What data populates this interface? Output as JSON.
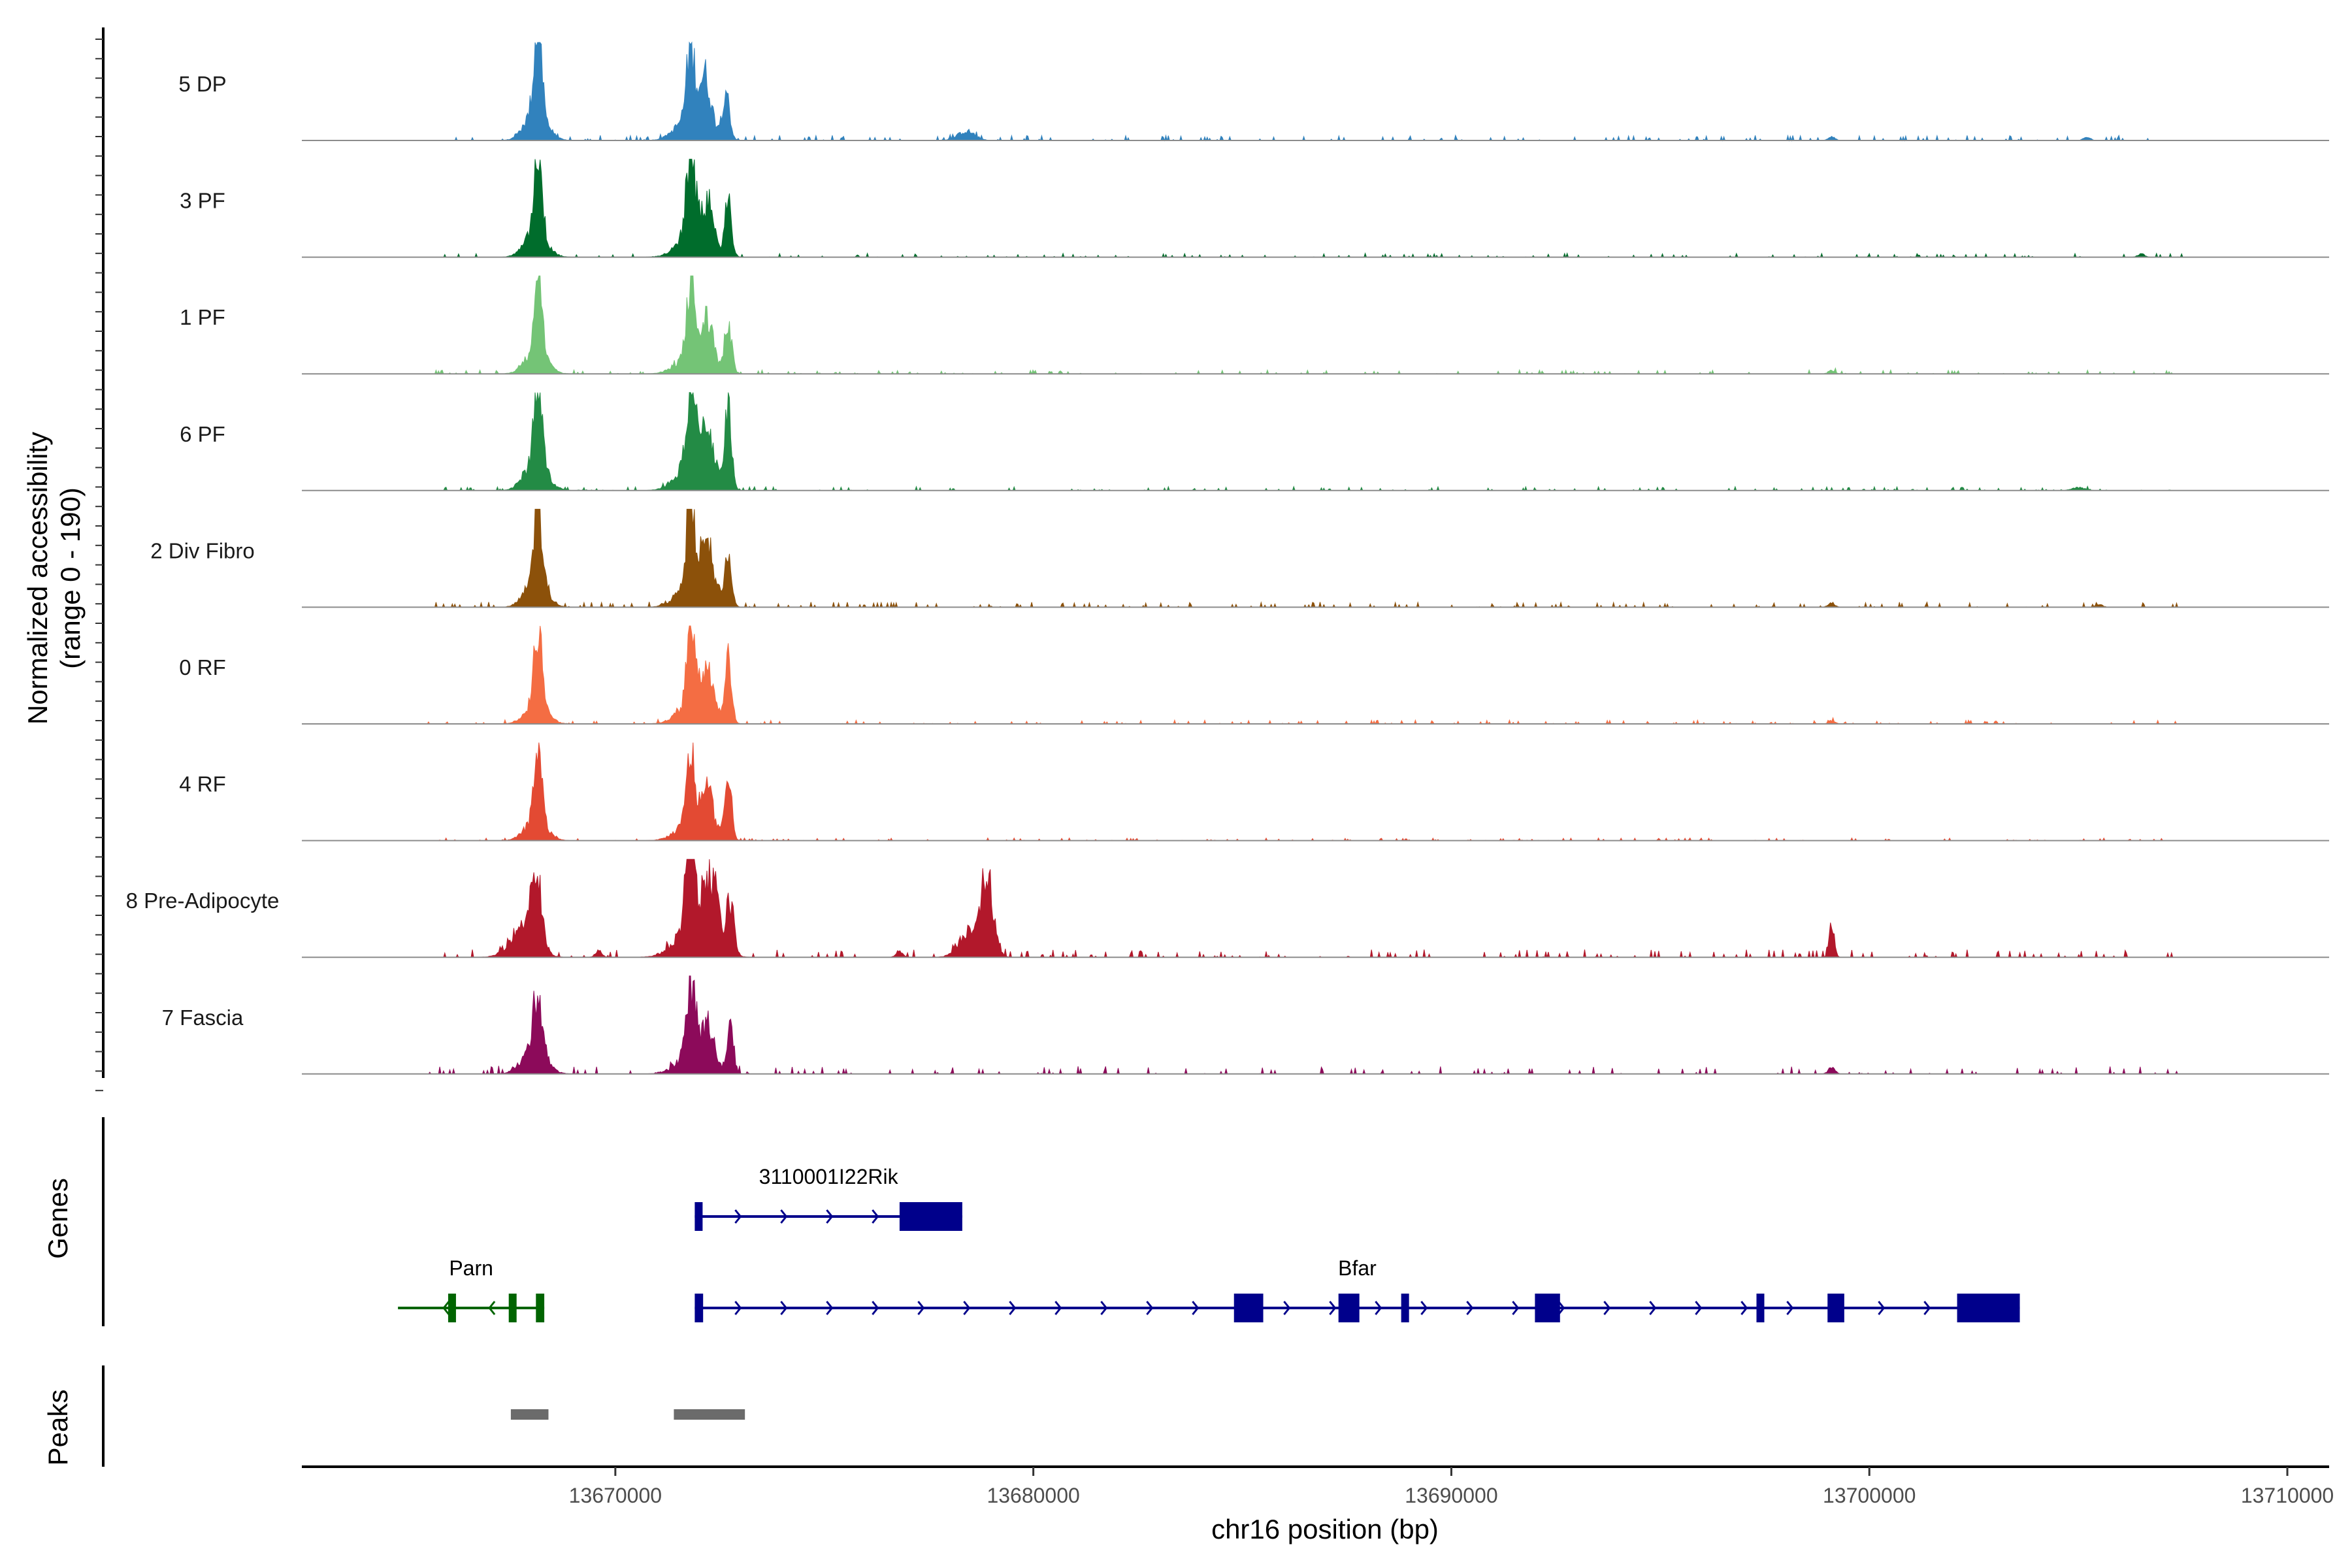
{
  "chart_data": {
    "type": "area",
    "ylabel": "Normalized accessibility\n(range 0 - 190)",
    "ylim": [
      0,
      190
    ],
    "xlabel": "chr16 position (bp)",
    "xlim": [
      13662500,
      13711000
    ],
    "x_ticks": [
      13670000,
      13680000,
      13690000,
      13700000,
      13710000
    ],
    "x_tick_labels": [
      "13670000",
      "13680000",
      "13690000",
      "13700000",
      "13710000"
    ],
    "panel_labels": {
      "genes": "Genes",
      "peaks": "Peaks"
    },
    "tracks": [
      {
        "name": "5 DP",
        "color": "#3182bd",
        "peaks": [
          [
            13668150,
            170,
            90
          ],
          [
            13668100,
            60,
            250
          ],
          [
            13671800,
            130,
            90
          ],
          [
            13672150,
            80,
            130
          ],
          [
            13672650,
            100,
            80
          ],
          [
            13671900,
            60,
            350
          ],
          [
            13678400,
            18,
            200
          ],
          [
            13699100,
            8,
            80
          ],
          [
            13705200,
            6,
            80
          ]
        ],
        "noise": 4
      },
      {
        "name": "3 PF",
        "color": "#006d2c",
        "peaks": [
          [
            13668150,
            170,
            90
          ],
          [
            13668100,
            50,
            250
          ],
          [
            13671800,
            155,
            100
          ],
          [
            13672200,
            70,
            140
          ],
          [
            13672700,
            105,
            80
          ],
          [
            13671900,
            50,
            350
          ],
          [
            13706500,
            6,
            80
          ]
        ],
        "noise": 3
      },
      {
        "name": "1 PF",
        "color": "#74c476",
        "peaks": [
          [
            13668150,
            170,
            90
          ],
          [
            13668100,
            45,
            250
          ],
          [
            13671800,
            140,
            90
          ],
          [
            13672200,
            75,
            140
          ],
          [
            13672700,
            100,
            80
          ],
          [
            13671900,
            45,
            350
          ],
          [
            13699100,
            6,
            80
          ]
        ],
        "noise": 3
      },
      {
        "name": "6 PF",
        "color": "#238b45",
        "peaks": [
          [
            13668150,
            160,
            90
          ],
          [
            13668100,
            60,
            260
          ],
          [
            13671800,
            150,
            100
          ],
          [
            13672200,
            90,
            150
          ],
          [
            13672700,
            150,
            80
          ],
          [
            13671900,
            60,
            360
          ],
          [
            13705000,
            6,
            150
          ]
        ],
        "noise": 3
      },
      {
        "name": "2 Div Fibro",
        "color": "#8c510a",
        "peaks": [
          [
            13668150,
            170,
            90
          ],
          [
            13668100,
            55,
            250
          ],
          [
            13671800,
            160,
            100
          ],
          [
            13672200,
            85,
            150
          ],
          [
            13672700,
            90,
            80
          ],
          [
            13671900,
            55,
            350
          ],
          [
            13699100,
            8,
            80
          ],
          [
            13705500,
            6,
            80
          ]
        ],
        "noise": 4
      },
      {
        "name": "0 RF",
        "color": "#f46d43",
        "peaks": [
          [
            13668150,
            150,
            90
          ],
          [
            13668100,
            40,
            250
          ],
          [
            13671800,
            150,
            90
          ],
          [
            13672200,
            80,
            140
          ],
          [
            13672700,
            120,
            80
          ],
          [
            13671900,
            45,
            350
          ],
          [
            13699100,
            6,
            80
          ]
        ],
        "noise": 3
      },
      {
        "name": "4 RF",
        "color": "#e34a33",
        "peaks": [
          [
            13668150,
            150,
            90
          ],
          [
            13668100,
            40,
            250
          ],
          [
            13671800,
            130,
            90
          ],
          [
            13672200,
            70,
            140
          ],
          [
            13672700,
            120,
            80
          ],
          [
            13671900,
            45,
            350
          ]
        ],
        "noise": 2
      },
      {
        "name": "8 Pre-Adipocyte",
        "color": "#b2182b",
        "peaks": [
          [
            13668100,
            130,
            130
          ],
          [
            13667800,
            60,
            300
          ],
          [
            13671800,
            190,
            110
          ],
          [
            13672300,
            120,
            160
          ],
          [
            13672750,
            100,
            90
          ],
          [
            13671900,
            70,
            400
          ],
          [
            13678900,
            140,
            150
          ],
          [
            13678500,
            55,
            250
          ],
          [
            13699100,
            60,
            60
          ],
          [
            13669600,
            12,
            80
          ],
          [
            13676800,
            12,
            80
          ]
        ],
        "noise": 6
      },
      {
        "name": "7 Fascia",
        "color": "#8c0a5a",
        "peaks": [
          [
            13668150,
            120,
            110
          ],
          [
            13668050,
            45,
            280
          ],
          [
            13671800,
            130,
            100
          ],
          [
            13672200,
            70,
            150
          ],
          [
            13672750,
            80,
            80
          ],
          [
            13671900,
            45,
            360
          ],
          [
            13699100,
            12,
            80
          ]
        ],
        "noise": 6
      }
    ],
    "genes": [
      {
        "name": "3110001I22Rik",
        "strand": "+",
        "color": "#00008b",
        "start": 13671900,
        "end": 13678300,
        "exons": [
          [
            13671900,
            13672050
          ],
          [
            13676800,
            13678300
          ]
        ],
        "row": 1
      },
      {
        "name": "Parn",
        "strand": "-",
        "color": "#006400",
        "start": 13664800,
        "end": 13668300,
        "exons": [
          [
            13666000,
            13666060
          ],
          [
            13667450,
            13667520
          ],
          [
            13668100,
            13668300
          ]
        ],
        "row": 2
      },
      {
        "name": "Bfar",
        "strand": "+",
        "color": "#00008b",
        "start": 13671900,
        "end": 13703600,
        "exons": [
          [
            13671900,
            13672100
          ],
          [
            13684800,
            13685500
          ],
          [
            13687300,
            13687800
          ],
          [
            13688800,
            13688950
          ],
          [
            13692000,
            13692600
          ],
          [
            13697300,
            13697450
          ],
          [
            13699000,
            13699400
          ],
          [
            13702100,
            13703600
          ]
        ],
        "row": 2
      }
    ],
    "peak_regions": [
      [
        13667500,
        13668400
      ],
      [
        13671400,
        13673100
      ]
    ]
  }
}
